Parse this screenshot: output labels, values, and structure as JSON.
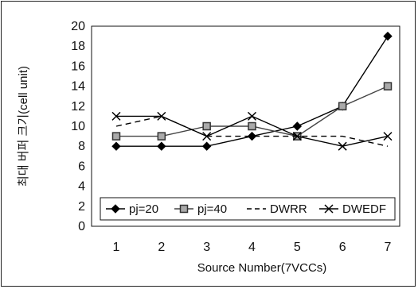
{
  "chart_data": {
    "type": "line",
    "title": "",
    "xlabel": "Source Number(7VCCs)",
    "ylabel": "최대 버퍼 크기(cell unit)",
    "categories": [
      "1",
      "2",
      "3",
      "4",
      "5",
      "6",
      "7"
    ],
    "ylim": [
      0,
      20
    ],
    "yticks": [
      0,
      2,
      4,
      6,
      8,
      10,
      12,
      14,
      16,
      18,
      20
    ],
    "grid": false,
    "legend_position": "bottom-inside",
    "series": [
      {
        "name": "pj=20",
        "values": [
          8,
          8,
          8,
          9,
          10,
          12,
          19
        ],
        "marker": "diamond",
        "line": "solid",
        "color": "#000000"
      },
      {
        "name": "pj=40",
        "values": [
          9,
          9,
          10,
          10,
          9,
          12,
          14
        ],
        "marker": "square",
        "line": "solid",
        "color": "#444444"
      },
      {
        "name": "DWRR",
        "values": [
          10,
          11,
          9,
          9,
          9,
          9,
          8
        ],
        "marker": "none",
        "line": "dashed",
        "color": "#000000"
      },
      {
        "name": "DWEDF",
        "values": [
          11,
          11,
          9,
          11,
          9,
          8,
          9
        ],
        "marker": "x",
        "line": "solid",
        "color": "#000000"
      }
    ]
  }
}
